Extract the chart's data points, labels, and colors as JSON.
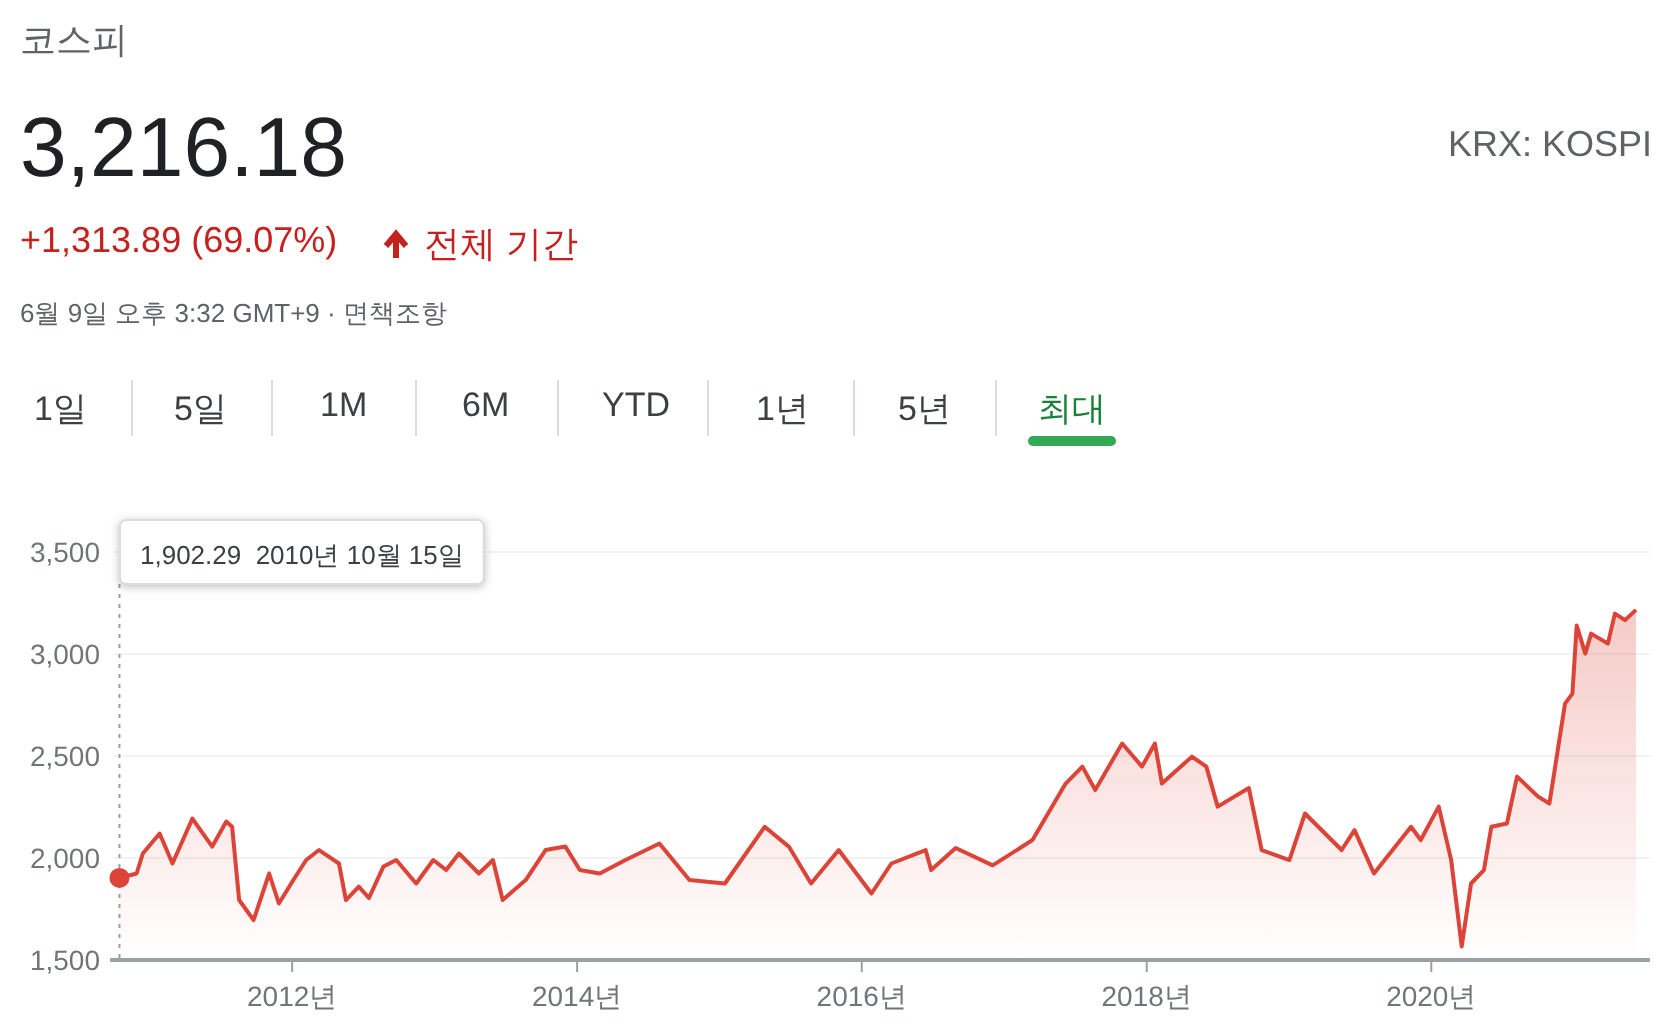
{
  "chart_data": {
    "type": "area",
    "title": "코스피",
    "subtitle": "3,216.18",
    "annotations": [
      "KRX: KOSPI",
      "+1,313.89 (69.07%)",
      "전체 기간",
      "6월 9일 오후 3:32 GMT+9 · 면책조항",
      "1일",
      "5일",
      "1M",
      "6M",
      "YTD",
      "1년",
      "5년",
      "최대",
      "1,902.29  2010년 10월 15일"
    ],
    "x": [
      "2010-10-15",
      "2010-11-28",
      "2010-12-14",
      "2011-01-26",
      "2011-02-28",
      "2011-04-20",
      "2011-06-10",
      "2011-07-16",
      "2011-07-31",
      "2011-08-18",
      "2011-09-24",
      "2011-11-03",
      "2011-11-28",
      "2012-01-04",
      "2012-02-06",
      "2012-03-10",
      "2012-04-30",
      "2012-05-18",
      "2012-06-20",
      "2012-07-16",
      "2012-08-22",
      "2012-09-24",
      "2012-11-14",
      "2012-12-28",
      "2013-01-30",
      "2013-03-04",
      "2013-04-24",
      "2013-05-30",
      "2013-06-24",
      "2013-08-22",
      "2013-10-12",
      "2013-12-02",
      "2014-01-08",
      "2014-02-28",
      "2014-05-05",
      "2014-07-31",
      "2014-10-16",
      "2015-01-15",
      "2015-04-27",
      "2015-06-28",
      "2015-08-24",
      "2015-11-03",
      "2016-01-26",
      "2016-03-17",
      "2016-06-13",
      "2016-06-27",
      "2016-08-29",
      "2016-12-02",
      "2017-03-14",
      "2017-06-07",
      "2017-07-20",
      "2017-08-22",
      "2017-10-30",
      "2017-12-20",
      "2018-01-22",
      "2018-02-09",
      "2018-04-27",
      "2018-06-03",
      "2018-07-02",
      "2018-09-20",
      "2018-10-23",
      "2019-01-02",
      "2019-02-11",
      "2019-05-16",
      "2019-06-18",
      "2019-08-07",
      "2019-11-10",
      "2019-12-05",
      "2020-01-20",
      "2020-02-21",
      "2020-03-19",
      "2020-04-12",
      "2020-05-15",
      "2020-06-03",
      "2020-07-13",
      "2020-08-08",
      "2020-10-01",
      "2020-10-30",
      "2020-12-09",
      "2020-12-28",
      "2021-01-08",
      "2021-01-30",
      "2021-02-14",
      "2021-03-29",
      "2021-04-16",
      "2021-05-12",
      "2021-06-09"
    ],
    "series": [
      {
        "color": "#db4437",
        "values": [
          1902.29,
          1924,
          2022,
          2120,
          1973,
          2193,
          2056,
          2179,
          2153,
          1794,
          1696,
          1924,
          1777,
          1892,
          1990,
          2039,
          1973,
          1794,
          1860,
          1804,
          1958,
          1990,
          1875,
          1990,
          1941,
          2022,
          1924,
          1990,
          1794,
          1892,
          2039,
          2056,
          1941,
          1924,
          1990,
          2071,
          1892,
          1875,
          2153,
          2056,
          1875,
          2039,
          1826,
          1973,
          2039,
          1941,
          2049,
          1964,
          2088,
          2365,
          2448,
          2333,
          2561,
          2448,
          2561,
          2365,
          2497,
          2448,
          2252,
          2343,
          2039,
          1990,
          2218,
          2039,
          2137,
          1924,
          2153,
          2088,
          2252,
          1990,
          1566,
          1875,
          1941,
          2153,
          2169,
          2399,
          2301,
          2267,
          2757,
          2806,
          3140,
          3002,
          3100,
          3051,
          3198,
          3166,
          3216.18
        ]
      }
    ],
    "xlim": [
      "2010-10-01",
      "2021-07-15"
    ],
    "xticks": [
      {
        "value": "2012-01-01",
        "label": "2012년"
      },
      {
        "value": "2014-01-01",
        "label": "2014년"
      },
      {
        "value": "2016-01-01",
        "label": "2016년"
      },
      {
        "value": "2018-01-01",
        "label": "2018년"
      },
      {
        "value": "2020-01-01",
        "label": "2020년"
      }
    ],
    "ylim": [
      1500,
      3500
    ],
    "yticks": [
      {
        "value": 1500,
        "label": "1,500"
      },
      {
        "value": 2000,
        "label": "2,000"
      },
      {
        "value": 2500,
        "label": "2,500"
      },
      {
        "value": 3000,
        "label": "3,000"
      },
      {
        "value": 3500,
        "label": "3,500"
      }
    ],
    "ref_lines": [
      {
        "axis": "x",
        "value": "2010-10-15",
        "line_style": "dotted",
        "color": "#9aa0a6"
      }
    ],
    "grid": "y"
  }
}
